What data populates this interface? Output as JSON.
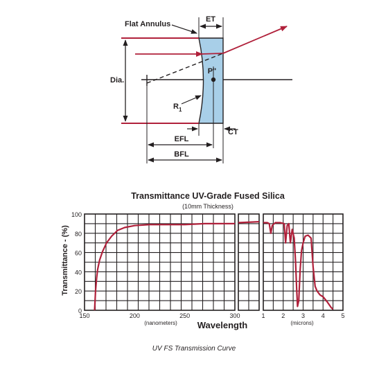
{
  "lens_diagram": {
    "flat_annulus": "Flat Annulus",
    "et": "ET",
    "dia": "Dia.",
    "p": "P\"",
    "r": "R",
    "r_sub": "1",
    "efl": "EFL",
    "bfl": "BFL",
    "ct": "CT",
    "colors": {
      "lens_fill": "#a8cfe8",
      "ray": "#b0203a",
      "line": "#231f20"
    }
  },
  "chart_data": {
    "type": "line",
    "title": "Transmittance UV-Grade Fused Silica",
    "subtitle": "(10mm Thickness)",
    "ylabel": "Transmittance - (%)",
    "xlabel": "Wavelength",
    "ylim": [
      0,
      100
    ],
    "yticks": [
      "0",
      "20",
      "40",
      "60",
      "80",
      "100"
    ],
    "panels": [
      {
        "name": "uv",
        "xlim": [
          150,
          300
        ],
        "xticks": [
          "150",
          "200",
          "250",
          "300"
        ],
        "unit_label": "(nanometers)",
        "x": [
          160,
          161,
          162,
          163,
          165,
          168,
          172,
          177,
          183,
          190,
          200,
          215,
          230,
          250,
          270,
          300
        ],
        "y": [
          0,
          20,
          33,
          42,
          52,
          61,
          70,
          77,
          83,
          86,
          88,
          89,
          89,
          89,
          90,
          90
        ]
      },
      {
        "name": "mid",
        "x": [
          0,
          1
        ],
        "y": [
          91,
          92
        ]
      },
      {
        "name": "ir",
        "xlim": [
          1,
          5
        ],
        "xticks": [
          "1",
          "2",
          "3",
          "4",
          "5"
        ],
        "unit_label": "(microns)",
        "x": [
          1.0,
          1.2,
          1.3,
          1.38,
          1.45,
          1.6,
          1.85,
          2.05,
          2.12,
          2.2,
          2.28,
          2.36,
          2.45,
          2.55,
          2.62,
          2.68,
          2.72,
          2.78,
          2.85,
          2.92,
          3.0,
          3.1,
          3.25,
          3.4,
          3.5,
          3.6,
          3.7,
          3.85,
          4.0,
          4.2,
          4.4,
          4.5
        ],
        "y": [
          91,
          91,
          90,
          80,
          88,
          91,
          91,
          90,
          70,
          88,
          90,
          70,
          84,
          75,
          50,
          20,
          4,
          10,
          42,
          62,
          70,
          77,
          78,
          75,
          45,
          25,
          20,
          16,
          14,
          9,
          3,
          1
        ]
      }
    ],
    "color": "#b0203a"
  },
  "caption": "UV FS Transmission Curve"
}
